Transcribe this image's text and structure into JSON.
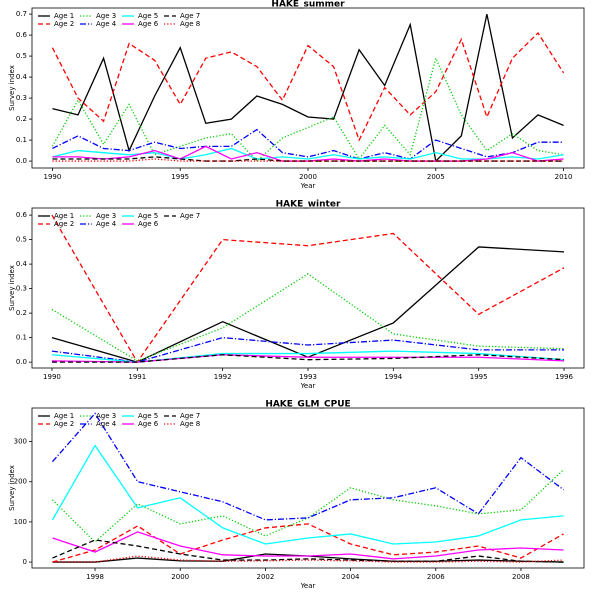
{
  "chart_data": [
    {
      "type": "line",
      "title": "HAKE_summer",
      "x_label": "Year",
      "y_label": "Survey index",
      "x": [
        1990,
        1991,
        1992,
        1993,
        1994,
        1995,
        1996,
        1997,
        1998,
        1999,
        2000,
        2001,
        2002,
        2003,
        2004,
        2005,
        2006,
        2007,
        2008,
        2009,
        2010
      ],
      "xlim": [
        1989.2,
        2010.8
      ],
      "xticks": [
        1990,
        1995,
        2000,
        2005,
        2010
      ],
      "ylim": [
        -0.033,
        0.729
      ],
      "yticks": [
        {
          "value": 0,
          "label": "0.0"
        },
        0.1,
        0.2,
        0.3,
        0.4,
        0.5,
        0.6,
        0.7
      ],
      "legend": "upper left",
      "series": [
        {
          "name": "Age 1",
          "color": "#000000",
          "dash": "solid",
          "values": [
            0.25,
            0.22,
            0.49,
            0.05,
            0.31,
            0.54,
            0.18,
            0.2,
            0.31,
            0.27,
            0.21,
            0.2,
            0.53,
            0.36,
            0.65,
            0.0,
            0.12,
            0.7,
            0.11,
            0.22,
            0.17
          ]
        },
        {
          "name": "Age 2",
          "color": "#ff0000",
          "dash": "dashed",
          "values": [
            0.54,
            0.3,
            0.19,
            0.56,
            0.48,
            0.27,
            0.49,
            0.52,
            0.45,
            0.29,
            0.55,
            0.45,
            0.1,
            0.35,
            0.22,
            0.33,
            0.58,
            0.21,
            0.49,
            0.61,
            0.42
          ]
        },
        {
          "name": "Age 3",
          "color": "#00cd00",
          "dash": "dotted",
          "values": [
            0.07,
            0.29,
            0.08,
            0.27,
            0.03,
            0.07,
            0.11,
            0.13,
            0.0,
            0.11,
            0.16,
            0.21,
            0.01,
            0.17,
            0.03,
            0.49,
            0.22,
            0.05,
            0.13,
            0.05,
            0.03
          ]
        },
        {
          "name": "Age 4",
          "color": "#0000ff",
          "dash": "dashdot",
          "values": [
            0.06,
            0.12,
            0.06,
            0.05,
            0.09,
            0.06,
            0.07,
            0.07,
            0.15,
            0.04,
            0.02,
            0.05,
            0.01,
            0.04,
            0.01,
            0.1,
            0.06,
            0.02,
            0.04,
            0.09,
            0.09
          ]
        },
        {
          "name": "Age 5",
          "color": "#00ffff",
          "dash": "solid",
          "values": [
            0.02,
            0.05,
            0.04,
            0.03,
            0.04,
            0.01,
            0.03,
            0.06,
            0.01,
            0.02,
            0.01,
            0.03,
            0.01,
            0.02,
            0.01,
            0.04,
            0.01,
            0.01,
            0.02,
            0.01,
            0.03
          ]
        },
        {
          "name": "Age 6",
          "color": "#ff00ff",
          "dash": "solid",
          "values": [
            0.02,
            0.02,
            0.01,
            0.02,
            0.05,
            0.01,
            0.07,
            0.01,
            0.04,
            0.0,
            0.0,
            0.01,
            0.0,
            0.01,
            0.0,
            0.0,
            0.0,
            0.01,
            0.04,
            0.0,
            0.01
          ]
        },
        {
          "name": "Age 7",
          "color": "#000000",
          "dash": "dashed",
          "values": [
            0.01,
            0.01,
            0.01,
            0.01,
            0.02,
            0.01,
            0.0,
            0.0,
            0.01,
            0.0,
            0.0,
            0.0,
            0.0,
            0.0,
            0.0,
            0.0,
            0.0,
            0.0,
            0.0,
            0.0,
            0.0
          ]
        },
        {
          "name": "Age 8",
          "color": "#ff0000",
          "dash": "dotted",
          "values": [
            0.0,
            0.0,
            0.0,
            0.0,
            0.01,
            0.0,
            0.0,
            0.0,
            0.0,
            0.0,
            0.0,
            0.0,
            0.0,
            0.0,
            0.0,
            0.0,
            0.0,
            0.0,
            0.0,
            0.0,
            0.0
          ]
        }
      ]
    },
    {
      "type": "line",
      "title": "HAKE_winter",
      "x_label": "Year",
      "y_label": "Survey index",
      "x": [
        1990,
        1991,
        1992,
        1993,
        1994,
        1995,
        1996
      ],
      "xlim": [
        1989.766,
        1996.234
      ],
      "xticks": [
        1990,
        1991,
        1992,
        1993,
        1994,
        1995,
        1996
      ],
      "ylim": [
        -0.024,
        0.629
      ],
      "yticks": [
        {
          "value": 0,
          "label": "0.0"
        },
        0.1,
        0.2,
        0.3,
        0.4,
        0.5,
        0.6
      ],
      "legend": "upper left",
      "series": [
        {
          "name": "Age 1",
          "color": "#000000",
          "dash": "solid",
          "values": [
            0.1,
            0.0,
            0.165,
            0.02,
            0.16,
            0.47,
            0.45
          ]
        },
        {
          "name": "Age 2",
          "color": "#ff0000",
          "dash": "dashed",
          "values": [
            0.6,
            0.0,
            0.5,
            0.475,
            0.525,
            0.195,
            0.385
          ]
        },
        {
          "name": "Age 3",
          "color": "#00cd00",
          "dash": "dotted",
          "values": [
            0.215,
            0.005,
            0.14,
            0.36,
            0.115,
            0.065,
            0.055
          ]
        },
        {
          "name": "Age 4",
          "color": "#0000ff",
          "dash": "dashdot",
          "values": [
            0.045,
            0.0,
            0.1,
            0.07,
            0.09,
            0.05,
            0.05
          ]
        },
        {
          "name": "Age 5",
          "color": "#00ffff",
          "dash": "solid",
          "values": [
            0.03,
            0.0,
            0.035,
            0.035,
            0.045,
            0.035,
            0.01
          ]
        },
        {
          "name": "Age 6",
          "color": "#ff00ff",
          "dash": "solid",
          "values": [
            0.005,
            0.0,
            0.03,
            0.02,
            0.02,
            0.02,
            0.005
          ]
        },
        {
          "name": "Age 7",
          "color": "#000000",
          "dash": "dashed",
          "values": [
            0.0,
            0.0,
            0.03,
            0.01,
            0.015,
            0.03,
            0.01
          ]
        }
      ]
    },
    {
      "type": "line",
      "title": "HAKE_GLM_CPUE",
      "x_label": "Year",
      "y_label": "Survey index",
      "x": [
        1997,
        1998,
        1999,
        2000,
        2001,
        2002,
        2003,
        2004,
        2005,
        2006,
        2007,
        2008,
        2009
      ],
      "xlim": [
        1996.52,
        2009.48
      ],
      "xticks": [
        1998,
        2000,
        2002,
        2004,
        2006,
        2008
      ],
      "ylim": [
        -14.8,
        383.6
      ],
      "yticks": [
        0,
        100,
        200,
        300
      ],
      "legend": "upper left",
      "series": [
        {
          "name": "Age 1",
          "color": "#000000",
          "dash": "solid",
          "values": [
            0,
            0,
            10,
            3,
            2,
            20,
            15,
            8,
            2,
            2,
            5,
            2,
            0
          ]
        },
        {
          "name": "Age 2",
          "color": "#ff0000",
          "dash": "dashed",
          "values": [
            0,
            30,
            90,
            20,
            55,
            85,
            95,
            45,
            18,
            25,
            40,
            10,
            70
          ]
        },
        {
          "name": "Age 3",
          "color": "#00cd00",
          "dash": "dotted",
          "values": [
            155,
            50,
            145,
            95,
            115,
            65,
            110,
            185,
            155,
            140,
            120,
            130,
            230
          ]
        },
        {
          "name": "Age 4",
          "color": "#0000ff",
          "dash": "dashdot",
          "values": [
            250,
            370,
            200,
            175,
            150,
            105,
            110,
            155,
            160,
            185,
            120,
            260,
            180
          ]
        },
        {
          "name": "Age 5",
          "color": "#00ffff",
          "dash": "solid",
          "values": [
            105,
            290,
            135,
            160,
            85,
            45,
            60,
            70,
            45,
            50,
            65,
            105,
            115
          ]
        },
        {
          "name": "Age 6",
          "color": "#ff00ff",
          "dash": "solid",
          "values": [
            60,
            25,
            75,
            40,
            18,
            15,
            15,
            20,
            8,
            15,
            30,
            35,
            30
          ]
        },
        {
          "name": "Age 7",
          "color": "#000000",
          "dash": "dashed",
          "values": [
            10,
            55,
            40,
            20,
            5,
            5,
            8,
            5,
            2,
            2,
            15,
            2,
            0
          ]
        },
        {
          "name": "Age 8",
          "color": "#ff0000",
          "dash": "dotted",
          "values": [
            0,
            0,
            15,
            5,
            2,
            3,
            5,
            3,
            0,
            0,
            2,
            0,
            5
          ]
        }
      ]
    }
  ]
}
